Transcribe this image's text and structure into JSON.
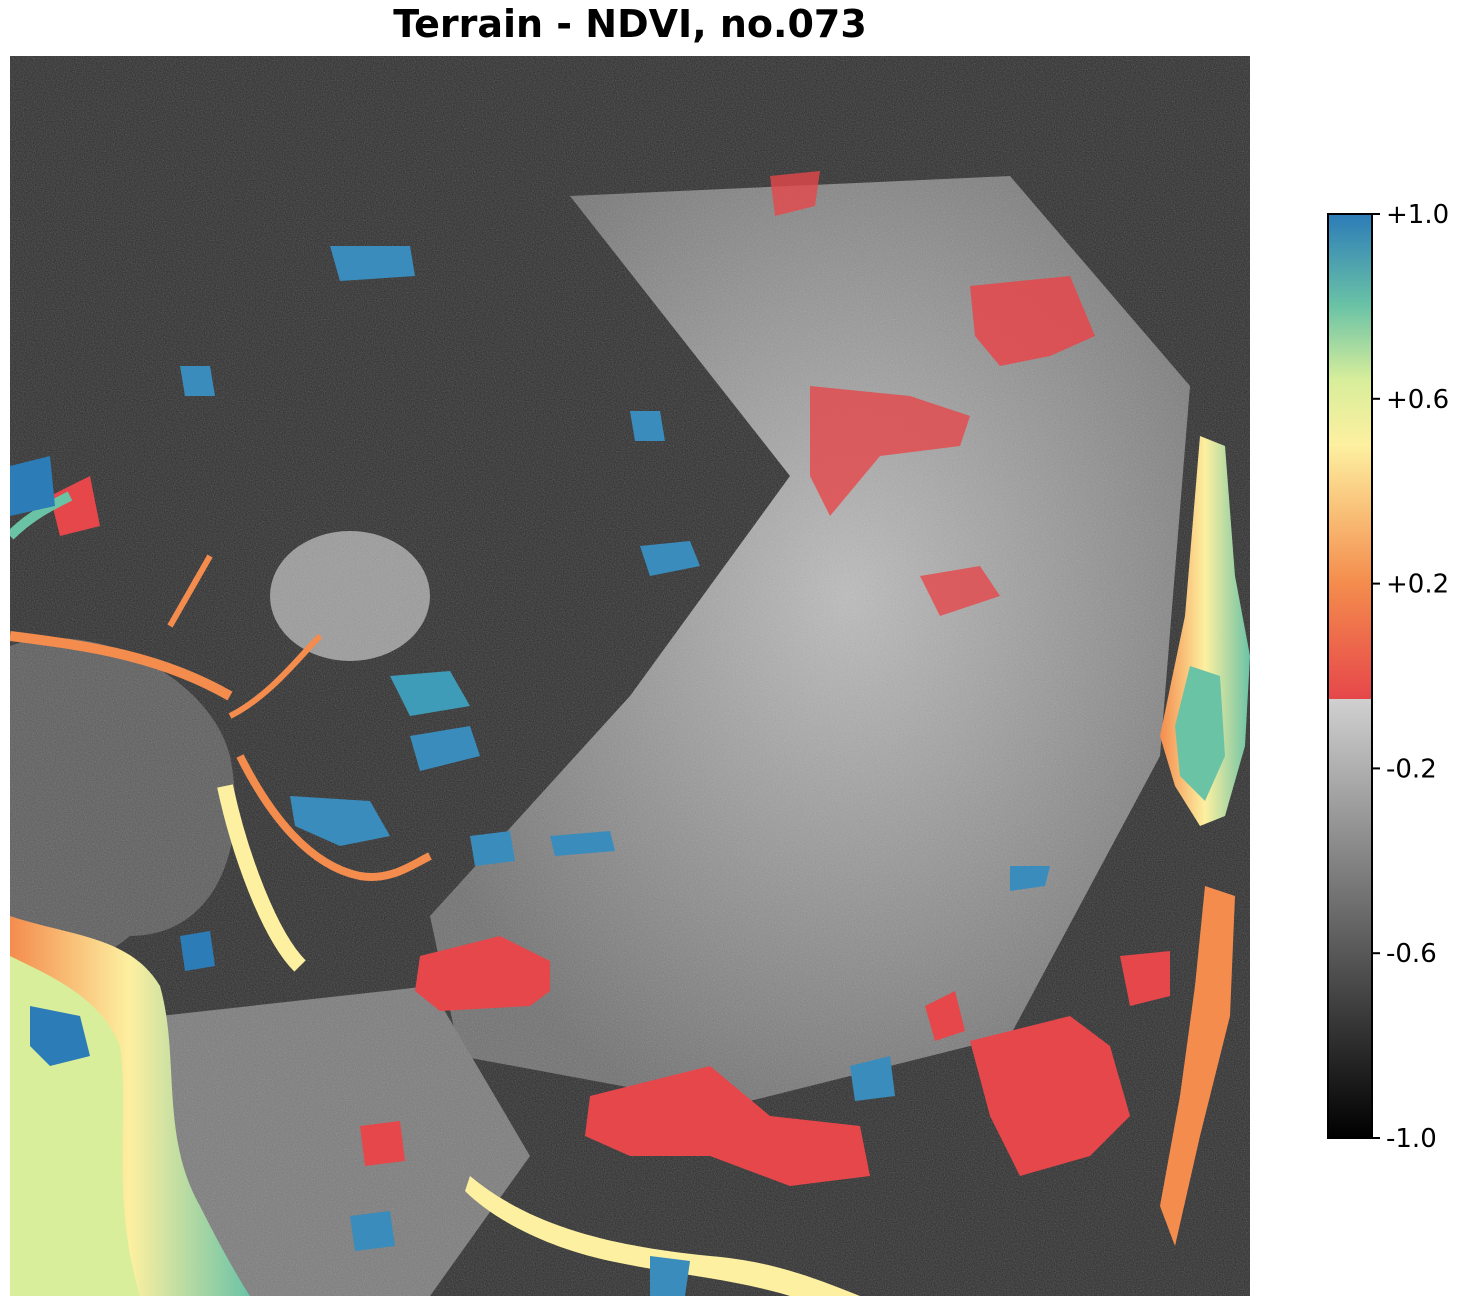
{
  "title": "Terrain - NDVI, no.073",
  "colorbar": {
    "min": -1.0,
    "max": 1.0,
    "threshold": -0.05,
    "ticks": [
      {
        "value": 1.0,
        "label": "+1.0"
      },
      {
        "value": 0.6,
        "label": "+0.6"
      },
      {
        "value": 0.2,
        "label": "+0.2"
      },
      {
        "value": -0.2,
        "label": "-0.2"
      },
      {
        "value": -0.6,
        "label": "-0.6"
      },
      {
        "value": -1.0,
        "label": "-1.0"
      }
    ],
    "colors": {
      "low_gray_dark": "#000000",
      "low_gray_light": "#d0d0d0",
      "red": "#e6474a",
      "orange": "#f48c4d",
      "yellow": "#fdf0a0",
      "light_green": "#d8ee9b",
      "green": "#6bc3a6",
      "blue": "#2c7cb8"
    }
  },
  "legend_colors": {
    "map_background_dark": "#1c1c1c",
    "map_background_mid": "#6e6e6e",
    "map_background_light": "#bdbdbd"
  }
}
